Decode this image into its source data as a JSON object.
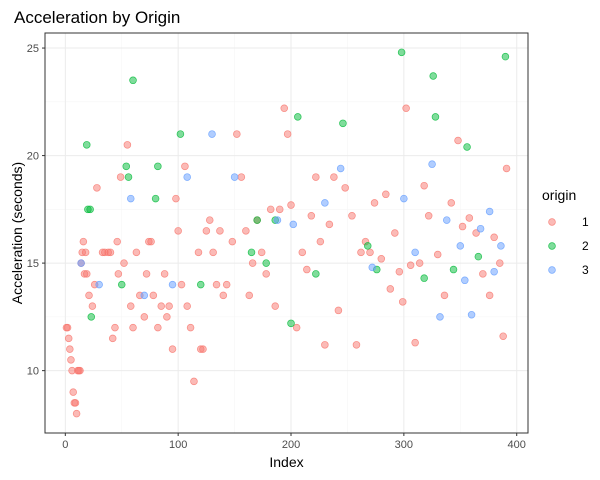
{
  "chart_data": {
    "type": "scatter",
    "title": "Acceleration by Origin",
    "xlabel": "Index",
    "ylabel": "Acceleration (seconds)",
    "xlim": [
      -18,
      410
    ],
    "ylim": [
      7.1,
      25.7
    ],
    "xticks": [
      0,
      100,
      200,
      300,
      400
    ],
    "yticks": [
      10,
      15,
      20,
      25
    ],
    "grid": true,
    "legend": {
      "title": "origin",
      "position": "right"
    },
    "colors": {
      "1": "#F8766D",
      "2": "#00BA38",
      "3": "#619CFF"
    },
    "series": [
      {
        "name": "1",
        "x": [
          1,
          2,
          3,
          4,
          5,
          6,
          7,
          8,
          9,
          10,
          11,
          12,
          13,
          14,
          15,
          16,
          17,
          18,
          19,
          21,
          24,
          26,
          28,
          33,
          35,
          38,
          40,
          42,
          44,
          46,
          47,
          49,
          52,
          55,
          58,
          60,
          63,
          66,
          70,
          72,
          74,
          76,
          78,
          82,
          85,
          88,
          90,
          92,
          95,
          98,
          100,
          103,
          106,
          108,
          111,
          114,
          118,
          120,
          122,
          125,
          128,
          131,
          134,
          137,
          140,
          143,
          148,
          152,
          156,
          160,
          163,
          166,
          170,
          174,
          178,
          182,
          186,
          190,
          194,
          197,
          200,
          205,
          210,
          214,
          218,
          222,
          226,
          230,
          234,
          238,
          242,
          248,
          254,
          258,
          262,
          266,
          270,
          274,
          280,
          284,
          288,
          292,
          296,
          299,
          302,
          306,
          310,
          314,
          318,
          322,
          330,
          336,
          342,
          348,
          352,
          358,
          364,
          370,
          376,
          380,
          385,
          388,
          391
        ],
        "y": [
          12,
          12,
          11.5,
          11,
          10.5,
          10,
          9,
          8.5,
          8.5,
          8,
          10,
          10,
          10,
          15,
          15.5,
          16,
          14.5,
          15.5,
          14.5,
          13.5,
          13,
          14,
          18.5,
          15.5,
          15.5,
          15.5,
          15.5,
          11.5,
          12,
          16,
          14.5,
          19,
          15,
          20.5,
          13,
          12,
          15.5,
          13.5,
          12.5,
          14.5,
          16,
          16,
          13.5,
          12,
          13,
          14.5,
          12.5,
          13,
          11,
          18,
          16.5,
          14,
          19.5,
          13,
          12,
          9.5,
          15.5,
          11,
          11,
          16.5,
          17,
          15.5,
          14,
          16.5,
          13.5,
          14,
          16,
          21,
          19,
          16.5,
          13.5,
          15,
          17,
          15.5,
          14.5,
          17.5,
          13,
          17.5,
          22.2,
          21,
          17.7,
          12,
          15.5,
          14.7,
          17.2,
          19,
          16,
          11.2,
          16.8,
          19,
          12.8,
          18.5,
          17.2,
          11.2,
          15.5,
          16,
          15.5,
          17.8,
          15.2,
          18.2,
          13.8,
          16.4,
          14.6,
          13.2,
          22.2,
          14.9,
          11.3,
          15,
          18.6,
          17.2,
          15.4,
          13.5,
          17.8,
          20.7,
          16.7,
          17.1,
          16.4,
          14.5,
          13.5,
          16.2,
          15,
          11.6,
          19.4
        ]
      },
      {
        "name": "2",
        "x": [
          19,
          20,
          22,
          23,
          50,
          54,
          56,
          60,
          80,
          82,
          102,
          120,
          165,
          170,
          178,
          186,
          200,
          206,
          222,
          246,
          268,
          276,
          298,
          318,
          326,
          328,
          344,
          356,
          366,
          390
        ],
        "y": [
          20.5,
          17.5,
          17.5,
          12.5,
          14,
          19.5,
          19,
          23.5,
          18,
          19.5,
          21,
          14,
          15.5,
          17,
          15,
          17,
          12.2,
          21.8,
          14.5,
          21.5,
          15.8,
          14.7,
          24.8,
          14.3,
          23.7,
          21.8,
          14.7,
          20.4,
          15.3,
          24.6
        ]
      },
      {
        "name": "3",
        "x": [
          14,
          30,
          58,
          70,
          95,
          108,
          130,
          150,
          188,
          202,
          230,
          244,
          272,
          300,
          310,
          325,
          332,
          338,
          350,
          354,
          360,
          368,
          376,
          380,
          386
        ],
        "y": [
          15,
          14,
          18,
          13.5,
          14,
          19,
          21,
          19,
          17,
          16.8,
          17.8,
          19.4,
          14.8,
          18,
          15.5,
          19.6,
          12.5,
          17,
          15.8,
          14.2,
          12.6,
          16.6,
          17.4,
          14.6,
          15.8
        ]
      }
    ]
  }
}
